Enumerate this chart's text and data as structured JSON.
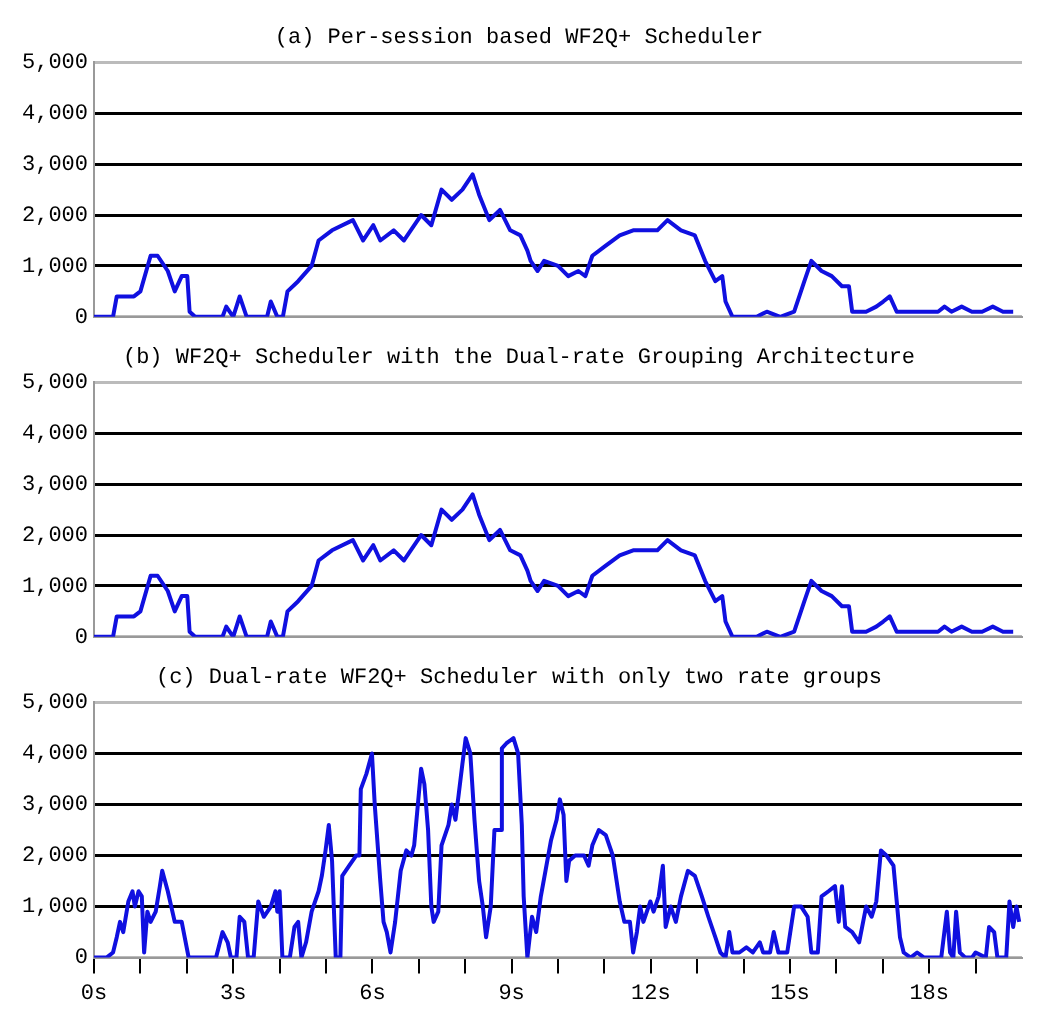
{
  "chart_data": [
    {
      "type": "line",
      "title": "(a) Per-session based WF2Q+ Scheduler",
      "xlim": [
        0,
        20
      ],
      "ylim": [
        0,
        5000
      ],
      "yticks": [
        {
          "value": 0,
          "label": "0"
        },
        {
          "value": 1000,
          "label": "1,000"
        },
        {
          "value": 2000,
          "label": "2,000"
        },
        {
          "value": 3000,
          "label": "3,000"
        },
        {
          "value": 4000,
          "label": "4,000"
        },
        {
          "value": 5000,
          "label": "5,000"
        }
      ],
      "grid": "y",
      "tick_labels": "y",
      "series": [
        {
          "color": "#1010e0",
          "x": [
            0,
            0.41,
            0.49,
            0.86,
            1.0,
            1.22,
            1.37,
            1.59,
            1.74,
            1.89,
            2.01,
            2.06,
            2.18,
            2.77,
            2.85,
            3.0,
            3.14,
            3.29,
            3.73,
            3.81,
            3.95,
            4.07,
            4.17,
            4.4,
            4.69,
            4.84,
            5.13,
            5.58,
            5.8,
            6.02,
            6.17,
            6.46,
            6.68,
            7.05,
            7.27,
            7.49,
            7.71,
            7.94,
            8.16,
            8.3,
            8.52,
            8.75,
            8.97,
            9.19,
            9.34,
            9.41,
            9.56,
            9.7,
            10.0,
            10.22,
            10.44,
            10.59,
            10.74,
            11.03,
            11.33,
            11.62,
            11.92,
            12.14,
            12.36,
            12.65,
            12.95,
            13.17,
            13.39,
            13.54,
            13.61,
            13.76,
            14.28,
            14.5,
            14.79,
            15.09,
            15.31,
            15.46,
            15.68,
            15.9,
            16.12,
            16.27,
            16.34,
            16.64,
            16.86,
            17.01,
            17.15,
            17.3,
            17.82,
            18.19,
            18.33,
            18.48,
            18.7,
            18.92,
            19.14,
            19.37,
            19.59,
            19.81
          ],
          "values": [
            0,
            0,
            400,
            400,
            500,
            1200,
            1200,
            900,
            500,
            800,
            800,
            100,
            0,
            0,
            200,
            0,
            400,
            0,
            0,
            300,
            0,
            0,
            500,
            700,
            1000,
            1500,
            1700,
            1900,
            1500,
            1800,
            1500,
            1700,
            1500,
            2000,
            1800,
            2500,
            2300,
            2500,
            2800,
            2400,
            1900,
            2100,
            1700,
            1600,
            1300,
            1100,
            900,
            1100,
            1000,
            800,
            900,
            800,
            1200,
            1400,
            1600,
            1700,
            1700,
            1700,
            1900,
            1700,
            1600,
            1100,
            700,
            800,
            300,
            0,
            0,
            100,
            0,
            100,
            700,
            1100,
            900,
            800,
            600,
            600,
            100,
            100,
            200,
            300,
            400,
            100,
            100,
            100,
            200,
            100,
            200,
            100,
            100,
            200,
            100,
            100
          ]
        }
      ]
    },
    {
      "type": "line",
      "title": "(b) WF2Q+ Scheduler with the Dual-rate Grouping Architecture",
      "xlim": [
        0,
        20
      ],
      "ylim": [
        0,
        5000
      ],
      "yticks": [
        {
          "value": 0,
          "label": "0"
        },
        {
          "value": 1000,
          "label": "1,000"
        },
        {
          "value": 2000,
          "label": "2,000"
        },
        {
          "value": 3000,
          "label": "3,000"
        },
        {
          "value": 4000,
          "label": "4,000"
        },
        {
          "value": 5000,
          "label": "5,000"
        }
      ],
      "grid": "y",
      "tick_labels": "y",
      "series": [
        {
          "color": "#1010e0",
          "x": [
            0,
            0.41,
            0.49,
            0.86,
            1.0,
            1.22,
            1.37,
            1.59,
            1.74,
            1.89,
            2.01,
            2.06,
            2.18,
            2.77,
            2.85,
            3.0,
            3.14,
            3.29,
            3.73,
            3.81,
            3.95,
            4.07,
            4.17,
            4.4,
            4.69,
            4.84,
            5.13,
            5.58,
            5.8,
            6.02,
            6.17,
            6.46,
            6.68,
            7.05,
            7.27,
            7.49,
            7.71,
            7.94,
            8.16,
            8.3,
            8.52,
            8.75,
            8.97,
            9.19,
            9.34,
            9.41,
            9.56,
            9.7,
            10.0,
            10.22,
            10.44,
            10.59,
            10.74,
            11.03,
            11.33,
            11.62,
            11.92,
            12.14,
            12.36,
            12.65,
            12.95,
            13.17,
            13.39,
            13.54,
            13.61,
            13.76,
            14.28,
            14.5,
            14.79,
            15.09,
            15.31,
            15.46,
            15.68,
            15.9,
            16.12,
            16.27,
            16.34,
            16.64,
            16.86,
            17.01,
            17.15,
            17.3,
            17.82,
            18.19,
            18.33,
            18.48,
            18.7,
            18.92,
            19.14,
            19.37,
            19.59,
            19.81
          ],
          "values": [
            0,
            0,
            400,
            400,
            500,
            1200,
            1200,
            900,
            500,
            800,
            800,
            100,
            0,
            0,
            200,
            0,
            400,
            0,
            0,
            300,
            0,
            0,
            500,
            700,
            1000,
            1500,
            1700,
            1900,
            1500,
            1800,
            1500,
            1700,
            1500,
            2000,
            1800,
            2500,
            2300,
            2500,
            2800,
            2400,
            1900,
            2100,
            1700,
            1600,
            1300,
            1100,
            900,
            1100,
            1000,
            800,
            900,
            800,
            1200,
            1400,
            1600,
            1700,
            1700,
            1700,
            1900,
            1700,
            1600,
            1100,
            700,
            800,
            300,
            0,
            0,
            100,
            0,
            100,
            700,
            1100,
            900,
            800,
            600,
            600,
            100,
            100,
            200,
            300,
            400,
            100,
            100,
            100,
            200,
            100,
            200,
            100,
            100,
            200,
            100,
            100
          ]
        }
      ]
    },
    {
      "type": "line",
      "title": "(c) Dual-rate WF2Q+ Scheduler with only two rate groups",
      "xlim": [
        0,
        20
      ],
      "xticks": [
        {
          "value": 0,
          "label": "0s"
        },
        {
          "value": 1,
          "label": null
        },
        {
          "value": 2,
          "label": null
        },
        {
          "value": 3,
          "label": "3s"
        },
        {
          "value": 4,
          "label": null
        },
        {
          "value": 5,
          "label": null
        },
        {
          "value": 6,
          "label": "6s"
        },
        {
          "value": 7,
          "label": null
        },
        {
          "value": 8,
          "label": null
        },
        {
          "value": 9,
          "label": "9s"
        },
        {
          "value": 10,
          "label": null
        },
        {
          "value": 11,
          "label": null
        },
        {
          "value": 12,
          "label": "12s"
        },
        {
          "value": 13,
          "label": null
        },
        {
          "value": 14,
          "label": null
        },
        {
          "value": 15,
          "label": "15s"
        },
        {
          "value": 16,
          "label": null
        },
        {
          "value": 17,
          "label": null
        },
        {
          "value": 18,
          "label": "18s"
        },
        {
          "value": 19,
          "label": null
        }
      ],
      "ylim": [
        0,
        5000
      ],
      "yticks": [
        {
          "value": 0,
          "label": "0"
        },
        {
          "value": 1000,
          "label": "1,000"
        },
        {
          "value": 2000,
          "label": "2,000"
        },
        {
          "value": 3000,
          "label": "3,000"
        },
        {
          "value": 4000,
          "label": "4,000"
        },
        {
          "value": 5000,
          "label": "5,000"
        }
      ],
      "grid": "y",
      "series": [
        {
          "color": "#1010e0",
          "x": [
            0,
            0.27,
            0.41,
            0.49,
            0.56,
            0.63,
            0.74,
            0.83,
            0.88,
            0.96,
            1.03,
            1.08,
            1.15,
            1.22,
            1.33,
            1.42,
            1.47,
            1.59,
            1.74,
            1.89,
            2.04,
            2.63,
            2.77,
            2.88,
            2.95,
            3.07,
            3.14,
            3.24,
            3.32,
            3.44,
            3.54,
            3.66,
            3.81,
            3.91,
            3.95,
            4.0,
            4.06,
            4.22,
            4.32,
            4.4,
            4.47,
            4.57,
            4.69,
            4.84,
            4.91,
            4.99,
            5.06,
            5.13,
            5.21,
            5.31,
            5.35,
            5.5,
            5.65,
            5.72,
            5.75,
            5.87,
            5.99,
            6.05,
            6.17,
            6.24,
            6.31,
            6.39,
            6.49,
            6.61,
            6.73,
            6.84,
            6.9,
            6.98,
            7.05,
            7.12,
            7.2,
            7.27,
            7.32,
            7.42,
            7.49,
            7.64,
            7.71,
            7.79,
            7.86,
            7.94,
            8.01,
            8.11,
            8.2,
            8.3,
            8.38,
            8.45,
            8.55,
            8.63,
            8.75,
            8.79,
            8.89,
            9.04,
            9.14,
            9.22,
            9.26,
            9.34,
            9.44,
            9.53,
            9.63,
            9.73,
            9.85,
            9.97,
            10.04,
            10.12,
            10.18,
            10.24,
            10.37,
            10.56,
            10.66,
            10.74,
            10.88,
            11.03,
            11.18,
            11.33,
            11.43,
            11.55,
            11.62,
            11.7,
            11.77,
            11.84,
            11.99,
            12.06,
            12.17,
            12.26,
            12.32,
            12.43,
            12.54,
            12.65,
            12.8,
            12.95,
            13.1,
            13.24,
            13.39,
            13.5,
            13.61,
            13.69,
            13.76,
            13.91,
            14.06,
            14.2,
            14.35,
            14.42,
            14.57,
            14.65,
            14.75,
            14.94,
            15.09,
            15.24,
            15.38,
            15.46,
            15.6,
            15.68,
            15.83,
            15.97,
            16.05,
            16.12,
            16.19,
            16.34,
            16.49,
            16.64,
            16.76,
            16.86,
            16.96,
            17.08,
            17.23,
            17.37,
            17.45,
            17.6,
            17.74,
            17.89,
            18.26,
            18.38,
            18.45,
            18.52,
            18.58,
            18.66,
            18.78,
            18.92,
            19.0,
            19.22,
            19.29,
            19.4,
            19.47,
            19.66,
            19.73,
            19.81,
            19.88,
            19.94
          ],
          "values": [
            0,
            0,
            100,
            400,
            700,
            500,
            1100,
            1300,
            1000,
            1300,
            1200,
            100,
            900,
            700,
            900,
            1400,
            1700,
            1300,
            700,
            700,
            0,
            0,
            500,
            300,
            0,
            0,
            800,
            700,
            0,
            0,
            1100,
            800,
            1000,
            1300,
            900,
            1300,
            0,
            0,
            600,
            700,
            0,
            300,
            900,
            1300,
            1600,
            2100,
            2600,
            1900,
            0,
            0,
            1600,
            1800,
            2000,
            2000,
            3300,
            3600,
            4000,
            3000,
            1500,
            700,
            500,
            100,
            700,
            1700,
            2100,
            2000,
            2200,
            3000,
            3700,
            3400,
            2500,
            1000,
            700,
            900,
            2200,
            2600,
            3000,
            2700,
            3200,
            3800,
            4300,
            4000,
            2700,
            1500,
            1000,
            400,
            1000,
            2500,
            2500,
            4100,
            4200,
            4300,
            4000,
            2600,
            1200,
            0,
            800,
            500,
            1200,
            1700,
            2300,
            2700,
            3100,
            2800,
            1500,
            1900,
            2000,
            2000,
            1800,
            2200,
            2500,
            2400,
            2000,
            1100,
            700,
            700,
            100,
            500,
            1000,
            700,
            1100,
            900,
            1200,
            1800,
            600,
            1000,
            700,
            1200,
            1700,
            1600,
            1200,
            800,
            400,
            100,
            0,
            500,
            100,
            100,
            200,
            100,
            300,
            100,
            100,
            500,
            100,
            100,
            1000,
            1000,
            800,
            100,
            100,
            1200,
            1300,
            1400,
            700,
            1400,
            600,
            500,
            300,
            1000,
            800,
            1100,
            2100,
            2000,
            1800,
            400,
            100,
            0,
            100,
            0,
            0,
            900,
            100,
            0,
            900,
            100,
            0,
            0,
            100,
            0,
            600,
            500,
            0,
            0,
            1100,
            600,
            1000,
            700
          ]
        }
      ]
    }
  ]
}
